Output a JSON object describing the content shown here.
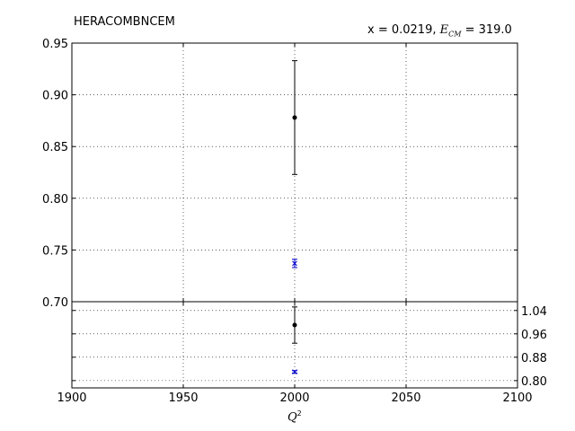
{
  "chart_data": {
    "type": "scatter",
    "title": "HERACOMBNCEM",
    "kinematics": {
      "x": "0.0219",
      "ecm_label": "E",
      "ecm_sub": "CM",
      "ecm": "319.0"
    },
    "xlabel": "Q",
    "xlabel_sup": "2",
    "grid": true,
    "top_panel": {
      "xlim": [
        1900,
        2100
      ],
      "ylim": [
        0.7,
        0.95
      ],
      "yticks": [
        "0.70",
        "0.75",
        "0.80",
        "0.85",
        "0.90",
        "0.95"
      ],
      "ytick_values": [
        0.7,
        0.75,
        0.8,
        0.85,
        0.9,
        0.95
      ],
      "series": [
        {
          "color": "#000000",
          "marker": "dot",
          "points": [
            {
              "x": 2000,
              "y": 0.878,
              "yerr": 0.055
            }
          ]
        },
        {
          "color": "#0000cc",
          "marker": "x",
          "points": [
            {
              "x": 2000,
              "y": 0.737,
              "yerr": 0.004
            }
          ]
        }
      ]
    },
    "ratio_panel": {
      "xlim": [
        1900,
        2100
      ],
      "ylim": [
        0.775,
        1.07
      ],
      "yticks": [
        "0.80",
        "0.88",
        "0.96",
        "1.04"
      ],
      "ytick_values": [
        0.8,
        0.88,
        0.96,
        1.04
      ],
      "series": [
        {
          "color": "#000000",
          "marker": "dot",
          "points": [
            {
              "x": 2000,
              "y": 0.99,
              "yerr": 0.062
            }
          ]
        },
        {
          "color": "#0000cc",
          "marker": "x",
          "points": [
            {
              "x": 2000,
              "y": 0.83,
              "yerr": 0.004
            }
          ]
        }
      ]
    },
    "xticks": [
      "1900",
      "1950",
      "2000",
      "2050",
      "2100"
    ],
    "xtick_values": [
      1900,
      1950,
      2000,
      2050,
      2100
    ]
  }
}
